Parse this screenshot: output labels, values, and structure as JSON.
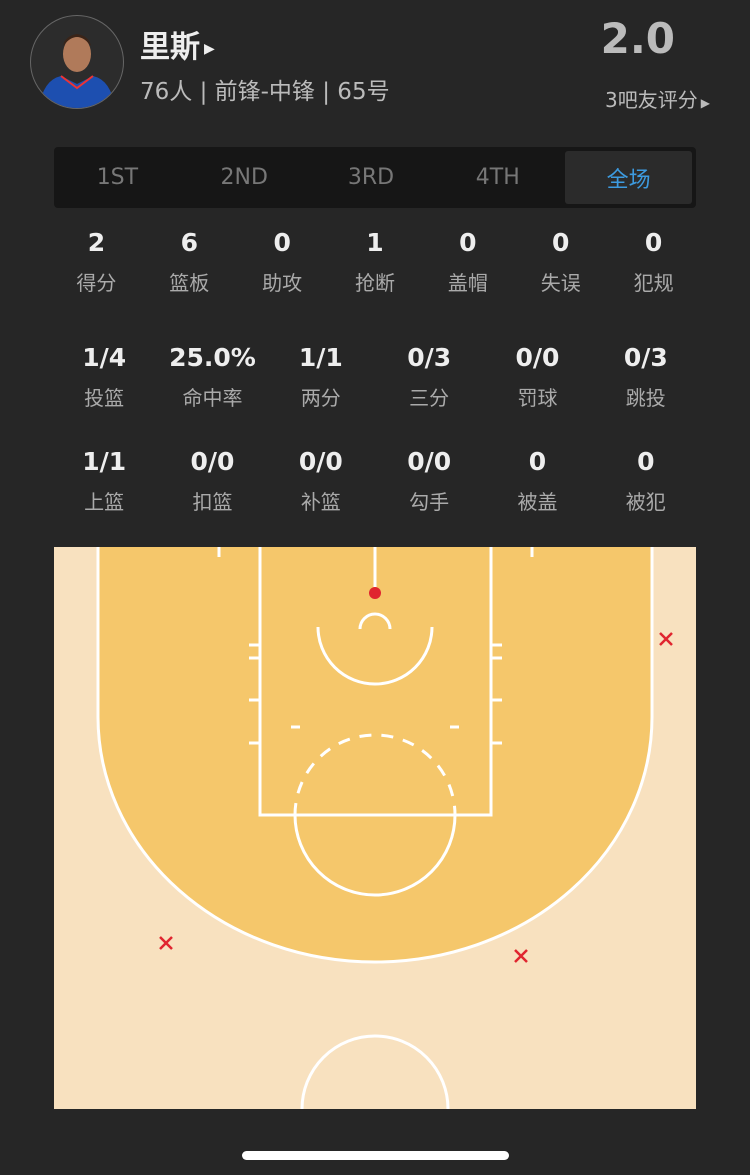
{
  "player": {
    "name": "里斯",
    "info": "76人 | 前锋-中锋 | 65号",
    "rating": "2.0",
    "rating_link": "3吧友评分"
  },
  "tabs": [
    {
      "label": "1ST"
    },
    {
      "label": "2ND"
    },
    {
      "label": "3RD"
    },
    {
      "label": "4TH"
    },
    {
      "label": "全场",
      "active": true
    }
  ],
  "stats_row1": [
    {
      "v": "2",
      "l": "得分"
    },
    {
      "v": "6",
      "l": "篮板"
    },
    {
      "v": "0",
      "l": "助攻"
    },
    {
      "v": "1",
      "l": "抢断"
    },
    {
      "v": "0",
      "l": "盖帽"
    },
    {
      "v": "0",
      "l": "失误"
    },
    {
      "v": "0",
      "l": "犯规"
    }
  ],
  "stats_row2": [
    {
      "v": "1/4",
      "l": "投篮"
    },
    {
      "v": "25.0%",
      "l": "命中率"
    },
    {
      "v": "1/1",
      "l": "两分"
    },
    {
      "v": "0/3",
      "l": "三分"
    },
    {
      "v": "0/0",
      "l": "罚球"
    },
    {
      "v": "0/3",
      "l": "跳投"
    }
  ],
  "stats_row3": [
    {
      "v": "1/1",
      "l": "上篮"
    },
    {
      "v": "0/0",
      "l": "扣篮"
    },
    {
      "v": "0/0",
      "l": "补篮"
    },
    {
      "v": "0/0",
      "l": "勾手"
    },
    {
      "v": "0",
      "l": "被盖"
    },
    {
      "v": "0",
      "l": "被犯"
    }
  ],
  "shot_chart": {
    "made_color": "#e0252f",
    "miss_color": "#e0252f",
    "made": 1,
    "missed": 3,
    "accent": "#3d9be0"
  }
}
